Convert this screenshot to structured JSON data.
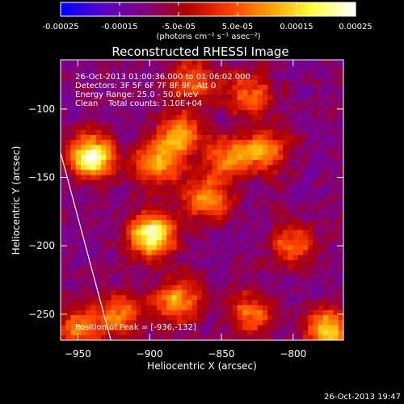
{
  "chart_data": {
    "type": "heatmap",
    "title": "Reconstructed RHESSI Image",
    "xlabel": "Heliocentric X (arcsec)",
    "ylabel": "Heliocentric Y (arcsec)",
    "xlim": [
      -962,
      -765
    ],
    "ylim": [
      -269,
      -64
    ],
    "x_ticks": [
      -950,
      -900,
      -850,
      -800
    ],
    "x_tick_labels": [
      "−950",
      "−900",
      "−850",
      "−800"
    ],
    "y_ticks": [
      -250,
      -200,
      -150,
      -100
    ],
    "y_tick_labels": [
      "−250",
      "−200",
      "−150",
      "−100"
    ],
    "colorbar": {
      "range": [
        -0.00025,
        0.00025
      ],
      "ticks": [
        -0.00025,
        -0.00015,
        -5e-05,
        5e-05,
        0.00015,
        0.00025
      ],
      "tick_labels": [
        "-0.00025",
        "-0.00015",
        "-5.0e-05",
        "5.0e-05",
        "0.00015",
        "0.00025"
      ],
      "unit_label": "(photons cm⁻² s⁻¹ asec⁻²)",
      "colors": [
        "#0000ff",
        "#5a00c8",
        "#800080",
        "#b00000",
        "#ff3c00",
        "#ffa000",
        "#ffff40",
        "#ffffff"
      ]
    },
    "annotations": [
      "26-Oct-2013 01:00:36.000 to 01:06:02.000",
      "Detectors: 3F 5F 6F 7F 8F 9F, Att 0",
      "Energy Range: 25.0 - 50.0 keV",
      "Clean    Total counts: 1.10E+04",
      "Position of Peak = [-936,-132]"
    ],
    "sources": [
      {
        "x": -940,
        "y": -135,
        "value": 0.00024
      },
      {
        "x": -898,
        "y": -192,
        "value": 0.00025
      },
      {
        "x": -880,
        "y": -120,
        "value": 0.00012
      },
      {
        "x": -895,
        "y": -140,
        "value": 0.00011
      },
      {
        "x": -860,
        "y": -165,
        "value": 0.0001
      },
      {
        "x": -845,
        "y": -135,
        "value": 9e-05
      },
      {
        "x": -820,
        "y": -130,
        "value": 9e-05
      },
      {
        "x": -880,
        "y": -240,
        "value": 0.00012
      },
      {
        "x": -920,
        "y": -250,
        "value": 8e-05
      },
      {
        "x": -775,
        "y": -262,
        "value": 0.00016
      },
      {
        "x": -830,
        "y": -250,
        "value": 8e-05
      },
      {
        "x": -800,
        "y": -200,
        "value": 6e-05
      },
      {
        "x": -870,
        "y": -80,
        "value": 8e-05
      },
      {
        "x": -830,
        "y": -90,
        "value": 7e-05
      },
      {
        "x": -950,
        "y": -260,
        "value": 9e-05
      }
    ],
    "limb": [
      {
        "x": -962,
        "y": -132
      },
      {
        "x": -927,
        "y": -269
      }
    ]
  },
  "footer": {
    "timestamp": "26-Oct-2013 19:47"
  },
  "colors": {
    "background": "#000000",
    "text": "#ffffff",
    "limb": "#ffffff"
  }
}
